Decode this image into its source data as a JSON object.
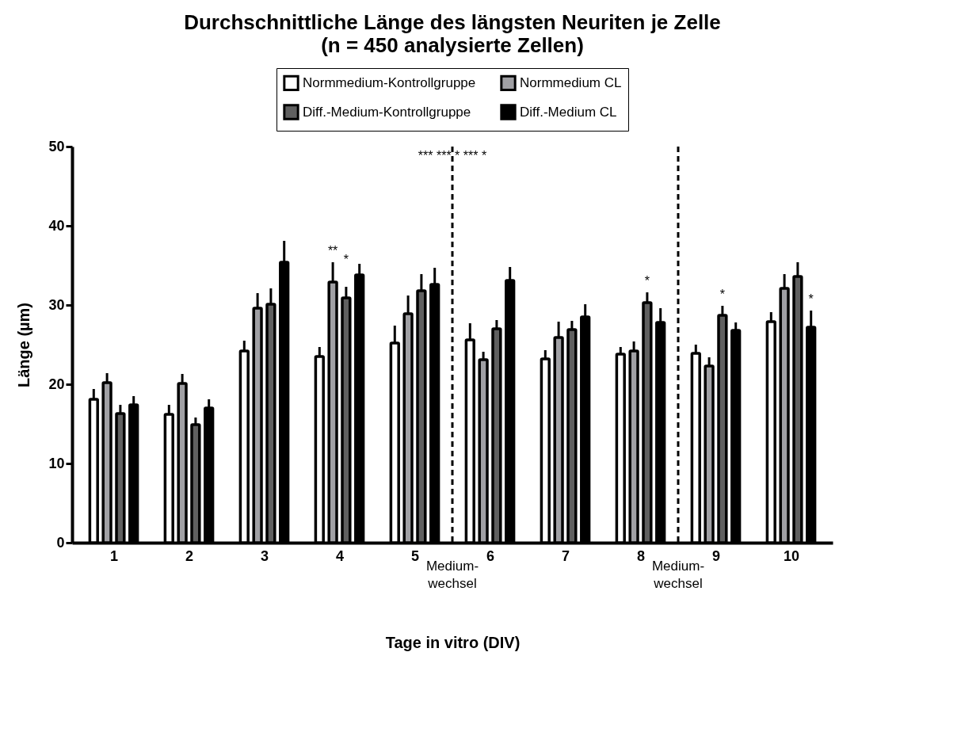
{
  "chart_data": {
    "type": "bar",
    "title": "Durchschnittliche Länge des längsten Neuriten je Zelle",
    "subtitle": "(n = 450 analysierte Zellen)",
    "xlabel": "Tage in vitro (DIV)",
    "ylabel": "Länge (µm)",
    "x": [
      1,
      2,
      3,
      4,
      5,
      6,
      7,
      8,
      9,
      10
    ],
    "xlim": [
      0.5,
      10.5
    ],
    "xticks": [
      1,
      2,
      3,
      4,
      5,
      6,
      7,
      8,
      9,
      10
    ],
    "ylim": [
      0,
      50
    ],
    "yticks": [
      0,
      10,
      20,
      30,
      40,
      50
    ],
    "grid": false,
    "legend": "top",
    "series": [
      {
        "name": "Normmedium-Kontrollgruppe",
        "color": "#ffffff",
        "values": [
          18.1,
          16.2,
          24.2,
          23.5,
          25.2,
          25.6,
          23.2,
          23.8,
          23.9,
          27.9
        ],
        "errors": [
          1.3,
          1.2,
          1.3,
          1.2,
          2.2,
          2.1,
          1.1,
          0.9,
          1.1,
          1.2
        ]
      },
      {
        "name": "Normmedium CL",
        "color": "#a0a0a4",
        "values": [
          20.2,
          20.1,
          29.6,
          32.9,
          28.9,
          23.1,
          25.9,
          24.2,
          22.3,
          32.1
        ],
        "errors": [
          1.2,
          1.2,
          1.9,
          2.5,
          2.3,
          1.0,
          2.0,
          1.2,
          1.1,
          1.8
        ]
      },
      {
        "name": "Diff.-Medium-Kontrollgruppe",
        "color": "#606060",
        "values": [
          16.3,
          14.9,
          30.1,
          30.9,
          31.8,
          27.0,
          26.9,
          30.3,
          28.7,
          33.6
        ],
        "errors": [
          1.1,
          0.9,
          2.0,
          1.4,
          2.1,
          1.1,
          1.1,
          1.3,
          1.2,
          1.8
        ]
      },
      {
        "name": "Diff.-Medium CL",
        "color": "#000000",
        "values": [
          17.4,
          17.0,
          35.4,
          33.8,
          32.6,
          33.1,
          28.5,
          27.8,
          26.8,
          27.2
        ],
        "errors": [
          1.1,
          1.1,
          2.7,
          1.4,
          2.1,
          1.7,
          1.6,
          1.8,
          1.0,
          2.1
        ]
      }
    ],
    "ref_lines": [
      {
        "axis": "x",
        "value": 5.5,
        "label": "Medium-\nwechsel",
        "line_style": "dashed",
        "color": "#000000"
      },
      {
        "axis": "x",
        "value": 8.5,
        "label": "Medium-\nwechsel",
        "line_style": "dashed",
        "color": "#000000"
      }
    ],
    "annotations": [
      "***",
      {
        "text": "**",
        "x": 4,
        "y": 32.9
      },
      {
        "text": "*",
        "x": 4,
        "y": 30.9
      },
      "***",
      "*",
      "***",
      "*",
      {
        "text": "*",
        "x": 8,
        "y": 30.3
      },
      {
        "text": "*",
        "x": 9,
        "y": 28.7
      },
      {
        "text": "*",
        "x": 10,
        "y": 27.2
      }
    ]
  }
}
